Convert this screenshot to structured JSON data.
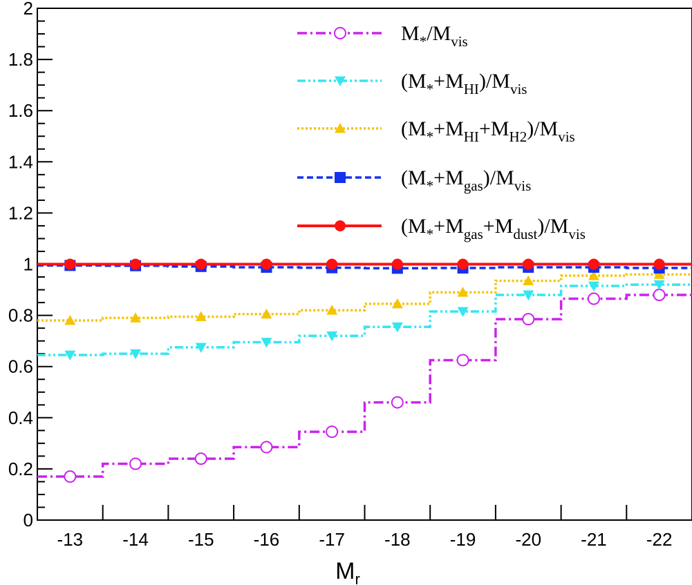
{
  "chart_data": {
    "type": "line",
    "subtype": "step-histogram",
    "title": "",
    "xlabel": {
      "base": "M",
      "sub": "r"
    },
    "ylabel": "",
    "categories": [
      "-13",
      "-14",
      "-15",
      "-16",
      "-17",
      "-18",
      "-19",
      "-20",
      "-21",
      "-22"
    ],
    "ylim": [
      0,
      2
    ],
    "yticks": [
      "0",
      "0.2",
      "0.4",
      "0.6",
      "0.8",
      "1",
      "1.2",
      "1.4",
      "1.6",
      "1.8",
      "2"
    ],
    "grid": false,
    "legend_position": "top-right",
    "series": [
      {
        "name": "M*/Mvis",
        "legend_parts": [
          [
            "M",
            ""
          ],
          [
            "*",
            "sub"
          ],
          [
            "/M",
            ""
          ],
          [
            "vis",
            "sub"
          ]
        ],
        "color": "#cc22ee",
        "line_style": "dash-dot",
        "marker": "open-circle",
        "values": [
          0.17,
          0.22,
          0.24,
          0.285,
          0.345,
          0.46,
          0.625,
          0.785,
          0.865,
          0.88
        ]
      },
      {
        "name": "(M*+MHI)/Mvis",
        "legend_parts": [
          [
            "(M",
            ""
          ],
          [
            "*",
            "sub"
          ],
          [
            "+M",
            ""
          ],
          [
            "HI",
            "sub"
          ],
          [
            ")/M",
            ""
          ],
          [
            "vis",
            "sub"
          ]
        ],
        "color": "#33e6f0",
        "line_style": "dash-dot-dot",
        "marker": "triangle-down",
        "values": [
          0.645,
          0.65,
          0.675,
          0.695,
          0.72,
          0.755,
          0.815,
          0.88,
          0.915,
          0.92
        ]
      },
      {
        "name": "(M*+MHI+MH2)/Mvis",
        "legend_parts": [
          [
            "(M",
            ""
          ],
          [
            "*",
            "sub"
          ],
          [
            "+M",
            ""
          ],
          [
            "HI",
            "sub"
          ],
          [
            "+M",
            ""
          ],
          [
            "H2",
            "sub"
          ],
          [
            ")/M",
            ""
          ],
          [
            "vis",
            "sub"
          ]
        ],
        "color": "#f5c400",
        "line_style": "dotted",
        "marker": "triangle-up",
        "values": [
          0.78,
          0.79,
          0.795,
          0.805,
          0.82,
          0.845,
          0.89,
          0.935,
          0.955,
          0.96
        ]
      },
      {
        "name": "(M*+Mgas)/Mvis",
        "legend_parts": [
          [
            "(M",
            ""
          ],
          [
            "*",
            "sub"
          ],
          [
            "+M",
            ""
          ],
          [
            "gas",
            "sub"
          ],
          [
            ")/M",
            ""
          ],
          [
            "vis",
            "sub"
          ]
        ],
        "color": "#1530ee",
        "line_style": "dashed",
        "marker": "square",
        "values": [
          0.995,
          0.994,
          0.991,
          0.988,
          0.986,
          0.984,
          0.985,
          0.988,
          0.988,
          0.985
        ]
      },
      {
        "name": "(M*+Mgas+Mdust)/Mvis",
        "legend_parts": [
          [
            "(M",
            ""
          ],
          [
            "*",
            "sub"
          ],
          [
            "+M",
            ""
          ],
          [
            "gas",
            "sub"
          ],
          [
            "+M",
            ""
          ],
          [
            "dust",
            "sub"
          ],
          [
            ")/M",
            ""
          ],
          [
            "vis",
            "sub"
          ]
        ],
        "color": "#ff1111",
        "line_style": "solid",
        "marker": "filled-circle",
        "values": [
          1.0,
          1.0,
          1.0,
          1.0,
          1.0,
          1.0,
          1.0,
          1.0,
          1.0,
          1.0
        ]
      }
    ]
  }
}
